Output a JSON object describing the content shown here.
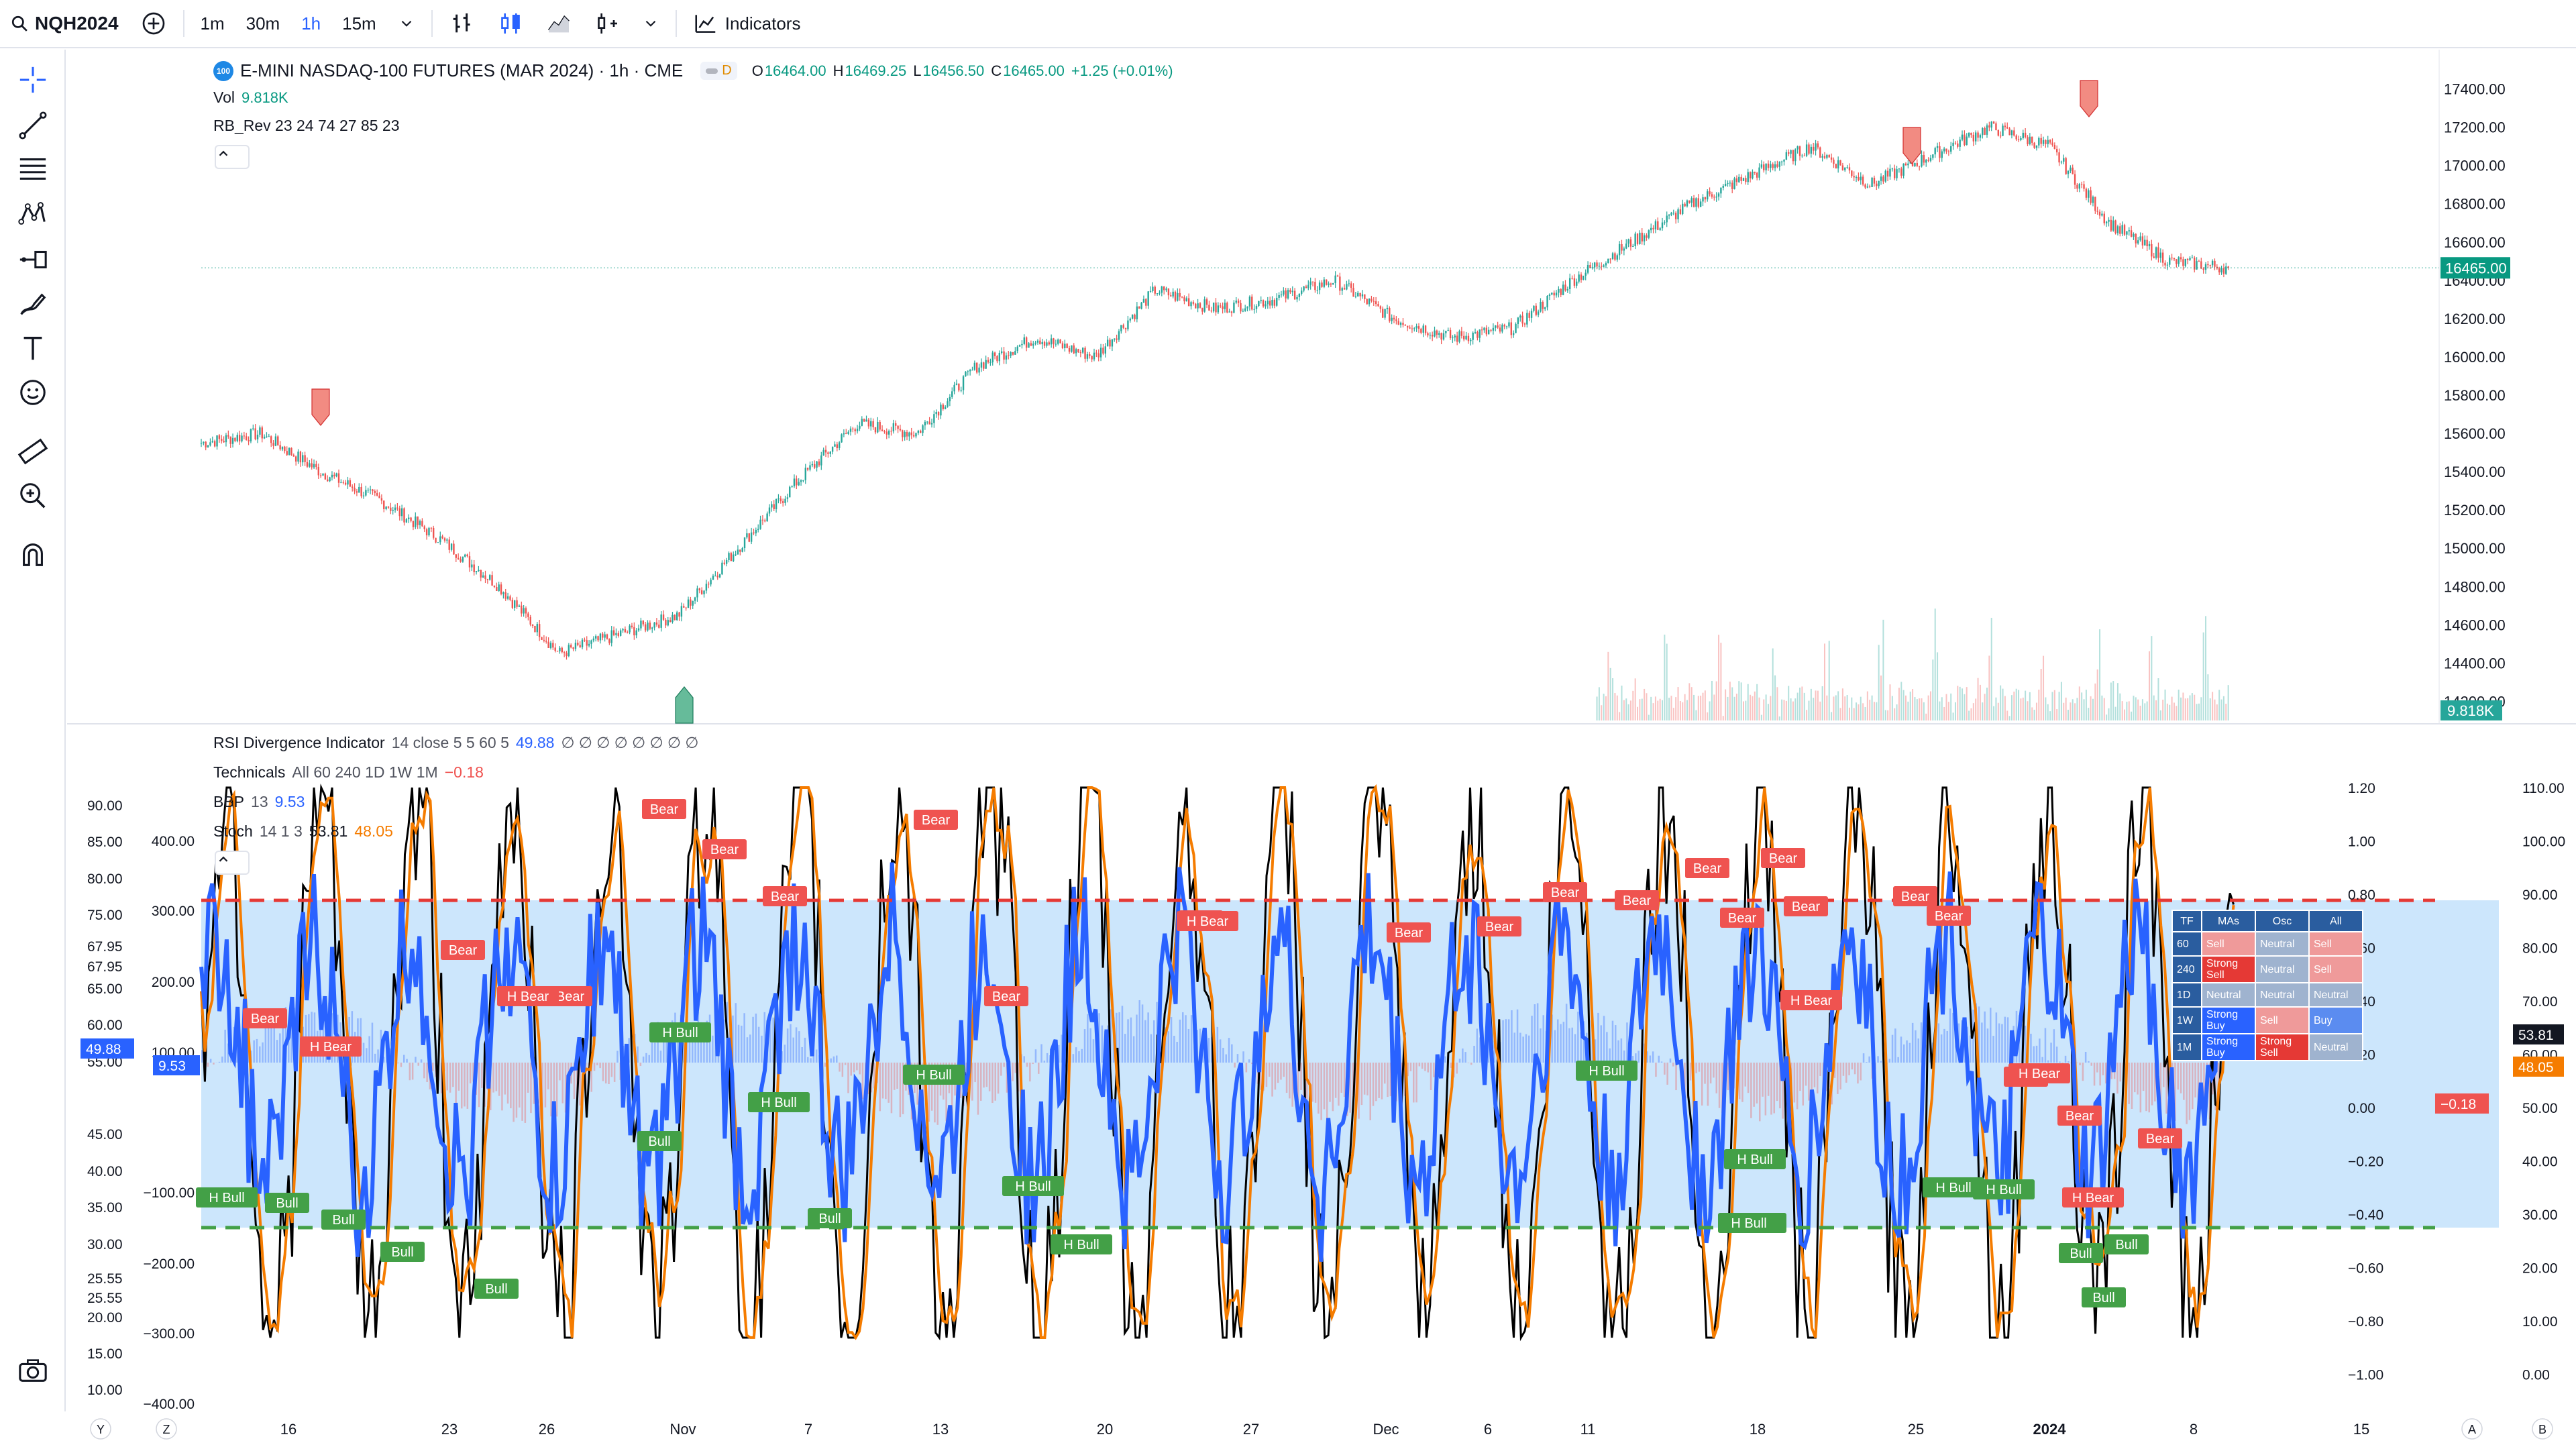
{
  "toolbar": {
    "symbol": "NQH2024",
    "intervals": [
      "1m",
      "30m",
      "1h",
      "15m"
    ],
    "active_interval": "1h",
    "indicators_label": "Indicators"
  },
  "main_pane": {
    "title": "E-MINI NASDAQ-100 FUTURES (MAR 2024) · 1h · CME",
    "logo_text": "100",
    "data_badge": "D",
    "ohlc": {
      "o_label": "O",
      "o": "16464.00",
      "h_label": "H",
      "h": "16469.25",
      "l_label": "L",
      "l": "16456.50",
      "c_label": "C",
      "c": "16465.00",
      "change": "+1.25 (+0.01%)"
    },
    "vol_label": "Vol",
    "vol_value": "9.818K",
    "rb_rev": "RB_Rev 23 24 74 27 85 23",
    "price_axis": [
      "17400.00",
      "17200.00",
      "17000.00",
      "16800.00",
      "16600.00",
      "16400.00",
      "16200.00",
      "16000.00",
      "15800.00",
      "15600.00",
      "15400.00",
      "15200.00",
      "15000.00",
      "14800.00",
      "14600.00",
      "14400.00",
      "14200.00"
    ],
    "last_price": "16465.00",
    "vol_tag": "9.818K"
  },
  "lower_pane": {
    "rsi_name": "RSI Divergence Indicator",
    "rsi_params": "14 close 5 5 60 5",
    "rsi_value": "49.88",
    "rsi_extra": "∅ ∅ ∅ ∅ ∅ ∅ ∅ ∅",
    "tech_name": "Technicals",
    "tech_params": "All 60 240 1D 1W 1M",
    "tech_value": "−0.18",
    "bbp_name": "BBP",
    "bbp_params": "13",
    "bbp_value": "9.53",
    "stoch_name": "Stoch",
    "stoch_params": "14 1 3",
    "stoch_k": "53.81",
    "stoch_d": "48.05",
    "left_axis": [
      "90.00",
      "85.00",
      "80.00",
      "75.00",
      "67.95",
      "67.95",
      "65.00",
      "60.00",
      "55.00",
      "45.00",
      "40.00",
      "35.00",
      "30.00",
      "25.55",
      "25.55",
      "20.00",
      "15.00",
      "10.00"
    ],
    "bbp_axis": [
      "400.00",
      "300.00",
      "200.00",
      "100.00",
      "−100.00",
      "−200.00",
      "−300.00",
      "−400.00"
    ],
    "tech_axis": [
      "1.20",
      "1.00",
      "0.80",
      "0.60",
      "0.40",
      "0.20",
      "0.00",
      "−0.20",
      "−0.40",
      "−0.60",
      "−0.80",
      "−1.00"
    ],
    "stoch_axis": [
      "110.00",
      "100.00",
      "90.00",
      "80.00",
      "70.00",
      "60.00",
      "50.00",
      "40.00",
      "30.00",
      "20.00",
      "10.00",
      "0.00"
    ],
    "left_rsi_tag": "49.88",
    "left_bbp_tag": "9.53",
    "right_stoch_k_tag": "53.81",
    "right_stoch_d_tag": "48.05",
    "right_tech_tag": "−0.18"
  },
  "signals": {
    "bear": "Bear",
    "h_bear": "H Bear",
    "bull": "Bull",
    "h_bull": "H Bull"
  },
  "tech_table": {
    "headers": [
      "TF",
      "MAs",
      "Osc",
      "All"
    ],
    "rows": [
      {
        "tf": "60",
        "mas": "Sell",
        "osc": "Neutral",
        "all": "Sell"
      },
      {
        "tf": "240",
        "mas": "Strong Sell",
        "osc": "Neutral",
        "all": "Sell"
      },
      {
        "tf": "1D",
        "mas": "Neutral",
        "osc": "Neutral",
        "all": "Neutral"
      },
      {
        "tf": "1W",
        "mas": "Strong Buy",
        "osc": "Sell",
        "all": "Buy"
      },
      {
        "tf": "1M",
        "mas": "Strong Buy",
        "osc": "Strong Sell",
        "all": "Neutral"
      }
    ]
  },
  "time_axis": [
    "16",
    "23",
    "26",
    "Nov",
    "7",
    "13",
    "20",
    "27",
    "Dec",
    "6",
    "11",
    "18",
    "25",
    "2024",
    "8",
    "15"
  ],
  "bottom_letters": {
    "y": "Y",
    "z": "Z",
    "a": "A",
    "b": "B"
  },
  "colors": {
    "accent": "#2962ff",
    "up": "#26a69a",
    "down": "#ef5350",
    "rsi_line": "#2962ff",
    "stoch_k": "#000000",
    "stoch_d": "#f57c00",
    "band": "#bbdefb"
  },
  "chart_data": [
    {
      "type": "candlestick",
      "title": "E-MINI NASDAQ-100 FUTURES (MAR 2024) · 1h · CME",
      "ylim": [
        14100,
        17500
      ],
      "x": [
        "16",
        "23",
        "26",
        "Nov",
        "7",
        "13",
        "20",
        "27",
        "Dec",
        "6",
        "11",
        "18",
        "25",
        "2024",
        "8"
      ],
      "close_path": [
        15550,
        15600,
        15400,
        15250,
        15050,
        14800,
        14450,
        14550,
        14650,
        15000,
        15350,
        15650,
        15600,
        15950,
        16100,
        16000,
        16350,
        16250,
        16300,
        16400,
        16200,
        16100,
        16150,
        16400,
        16600,
        16800,
        16950,
        17100,
        16900,
        17050,
        17200,
        17100,
        16700,
        16500,
        16465
      ],
      "markers": [
        {
          "type": "sell",
          "x": "16"
        },
        {
          "type": "buy",
          "x": "26"
        },
        {
          "type": "sell",
          "x": "18"
        },
        {
          "type": "sell",
          "x": "25"
        }
      ]
    },
    {
      "type": "line",
      "title": "RSI Divergence Indicator",
      "ylim": [
        0,
        110
      ],
      "bands": [
        25.55,
        67.95
      ]
    }
  ]
}
